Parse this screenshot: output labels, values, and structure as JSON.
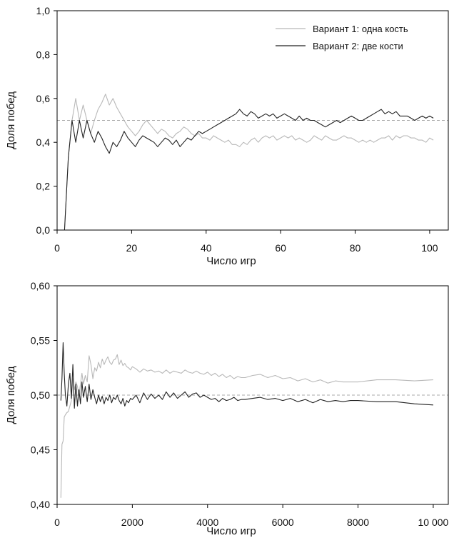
{
  "colors": {
    "series1": "#b8b8b8",
    "series2": "#222222",
    "reference": "#aaaaaa",
    "axis": "#000000"
  },
  "chart_data": [
    {
      "type": "line",
      "xlabel": "Число игр",
      "ylabel": "Доля побед",
      "xlim": [
        0,
        105
      ],
      "ylim": [
        0,
        1.0
      ],
      "xticks": [
        0,
        20,
        40,
        60,
        80,
        100
      ],
      "xtick_labels": [
        "0",
        "20",
        "40",
        "60",
        "80",
        "100"
      ],
      "yticks": [
        0,
        0.2,
        0.4,
        0.6,
        0.8,
        1.0
      ],
      "ytick_labels": [
        "0,0",
        "0,2",
        "0,4",
        "0,6",
        "0,8",
        "1,0"
      ],
      "reference_line": 0.5,
      "legend_position": "top-right",
      "series": [
        {
          "name": "Вариант 1: одна кость",
          "x": [
            1,
            2,
            3,
            4,
            5,
            6,
            7,
            8,
            9,
            10,
            11,
            12,
            13,
            14,
            15,
            16,
            17,
            18,
            19,
            20,
            21,
            22,
            23,
            24,
            25,
            26,
            27,
            28,
            29,
            30,
            31,
            32,
            33,
            34,
            35,
            36,
            37,
            38,
            39,
            40,
            41,
            42,
            43,
            44,
            45,
            46,
            47,
            48,
            49,
            50,
            51,
            52,
            53,
            54,
            55,
            56,
            57,
            58,
            59,
            60,
            61,
            62,
            63,
            64,
            65,
            66,
            67,
            68,
            69,
            70,
            71,
            72,
            73,
            74,
            75,
            76,
            77,
            78,
            79,
            80,
            81,
            82,
            83,
            84,
            85,
            86,
            87,
            88,
            89,
            90,
            91,
            92,
            93,
            94,
            95,
            96,
            97,
            98,
            99,
            100,
            101
          ],
          "y": [
            0,
            0,
            0.33,
            0.5,
            0.6,
            0.5,
            0.57,
            0.5,
            0.44,
            0.5,
            0.55,
            0.58,
            0.62,
            0.57,
            0.6,
            0.56,
            0.53,
            0.5,
            0.47,
            0.45,
            0.43,
            0.45,
            0.48,
            0.5,
            0.48,
            0.46,
            0.44,
            0.46,
            0.45,
            0.43,
            0.42,
            0.44,
            0.45,
            0.47,
            0.46,
            0.44,
            0.43,
            0.44,
            0.42,
            0.42,
            0.41,
            0.43,
            0.42,
            0.41,
            0.4,
            0.41,
            0.39,
            0.39,
            0.38,
            0.4,
            0.39,
            0.41,
            0.42,
            0.4,
            0.42,
            0.43,
            0.42,
            0.43,
            0.41,
            0.42,
            0.43,
            0.42,
            0.43,
            0.41,
            0.42,
            0.41,
            0.4,
            0.41,
            0.43,
            0.42,
            0.41,
            0.43,
            0.42,
            0.41,
            0.41,
            0.42,
            0.43,
            0.42,
            0.42,
            0.41,
            0.4,
            0.41,
            0.4,
            0.41,
            0.4,
            0.41,
            0.42,
            0.42,
            0.43,
            0.41,
            0.43,
            0.42,
            0.43,
            0.43,
            0.42,
            0.42,
            0.41,
            0.41,
            0.4,
            0.42,
            0.41
          ]
        },
        {
          "name": "Вариант 2: две кости",
          "x": [
            1,
            2,
            3,
            4,
            5,
            6,
            7,
            8,
            9,
            10,
            11,
            12,
            13,
            14,
            15,
            16,
            17,
            18,
            19,
            20,
            21,
            22,
            23,
            24,
            25,
            26,
            27,
            28,
            29,
            30,
            31,
            32,
            33,
            34,
            35,
            36,
            37,
            38,
            39,
            40,
            41,
            42,
            43,
            44,
            45,
            46,
            47,
            48,
            49,
            50,
            51,
            52,
            53,
            54,
            55,
            56,
            57,
            58,
            59,
            60,
            61,
            62,
            63,
            64,
            65,
            66,
            67,
            68,
            69,
            70,
            71,
            72,
            73,
            74,
            75,
            76,
            77,
            78,
            79,
            80,
            81,
            82,
            83,
            84,
            85,
            86,
            87,
            88,
            89,
            90,
            91,
            92,
            93,
            94,
            95,
            96,
            97,
            98,
            99,
            100,
            101
          ],
          "y": [
            0,
            0,
            0.33,
            0.5,
            0.4,
            0.5,
            0.42,
            0.5,
            0.44,
            0.4,
            0.45,
            0.42,
            0.38,
            0.35,
            0.4,
            0.38,
            0.41,
            0.45,
            0.42,
            0.4,
            0.38,
            0.41,
            0.43,
            0.42,
            0.41,
            0.4,
            0.38,
            0.4,
            0.42,
            0.41,
            0.39,
            0.41,
            0.38,
            0.4,
            0.42,
            0.41,
            0.43,
            0.45,
            0.44,
            0.45,
            0.46,
            0.47,
            0.48,
            0.49,
            0.5,
            0.51,
            0.52,
            0.53,
            0.55,
            0.53,
            0.52,
            0.54,
            0.53,
            0.51,
            0.52,
            0.53,
            0.52,
            0.53,
            0.51,
            0.52,
            0.53,
            0.52,
            0.51,
            0.5,
            0.52,
            0.5,
            0.51,
            0.5,
            0.5,
            0.49,
            0.48,
            0.47,
            0.48,
            0.49,
            0.5,
            0.49,
            0.5,
            0.51,
            0.52,
            0.51,
            0.5,
            0.5,
            0.51,
            0.52,
            0.53,
            0.54,
            0.55,
            0.53,
            0.54,
            0.53,
            0.54,
            0.52,
            0.52,
            0.52,
            0.51,
            0.5,
            0.51,
            0.52,
            0.51,
            0.52,
            0.51
          ]
        }
      ]
    },
    {
      "type": "line",
      "xlabel": "Число игр",
      "ylabel": "Доля побед",
      "xlim": [
        0,
        10400
      ],
      "ylim": [
        0.4,
        0.6
      ],
      "xticks": [
        0,
        2000,
        4000,
        6000,
        8000,
        10000
      ],
      "xtick_labels": [
        "0",
        "2000",
        "4000",
        "6000",
        "8000",
        "10 000"
      ],
      "yticks": [
        0.4,
        0.45,
        0.5,
        0.55,
        0.6
      ],
      "ytick_labels": [
        "0,40",
        "0,45",
        "0,50",
        "0,55",
        "0,60"
      ],
      "reference_line": 0.5,
      "series": [
        {
          "name": "Вариант 1: одна кость",
          "x": [
            100,
            130,
            160,
            190,
            220,
            260,
            300,
            340,
            380,
            420,
            460,
            500,
            540,
            580,
            620,
            660,
            700,
            750,
            800,
            850,
            900,
            950,
            1000,
            1050,
            1100,
            1150,
            1200,
            1250,
            1300,
            1350,
            1400,
            1450,
            1500,
            1550,
            1600,
            1650,
            1700,
            1750,
            1800,
            1850,
            1900,
            1950,
            2000,
            2100,
            2200,
            2300,
            2400,
            2500,
            2600,
            2700,
            2800,
            2900,
            3000,
            3100,
            3200,
            3300,
            3400,
            3500,
            3600,
            3700,
            3800,
            3900,
            4000,
            4100,
            4200,
            4300,
            4400,
            4500,
            4600,
            4700,
            4800,
            4900,
            5000,
            5200,
            5400,
            5600,
            5800,
            6000,
            6200,
            6400,
            6600,
            6800,
            7000,
            7200,
            7400,
            7600,
            7800,
            8000,
            8500,
            9000,
            9500,
            10000
          ],
          "y": [
            0.406,
            0.455,
            0.458,
            0.48,
            0.482,
            0.484,
            0.485,
            0.49,
            0.495,
            0.515,
            0.505,
            0.512,
            0.508,
            0.5,
            0.51,
            0.52,
            0.51,
            0.518,
            0.512,
            0.536,
            0.528,
            0.515,
            0.525,
            0.522,
            0.53,
            0.525,
            0.533,
            0.528,
            0.532,
            0.535,
            0.53,
            0.528,
            0.532,
            0.533,
            0.537,
            0.528,
            0.532,
            0.527,
            0.529,
            0.526,
            0.525,
            0.523,
            0.526,
            0.524,
            0.521,
            0.524,
            0.522,
            0.523,
            0.521,
            0.522,
            0.52,
            0.523,
            0.52,
            0.522,
            0.521,
            0.52,
            0.523,
            0.521,
            0.52,
            0.522,
            0.52,
            0.519,
            0.521,
            0.518,
            0.52,
            0.517,
            0.519,
            0.516,
            0.518,
            0.515,
            0.517,
            0.516,
            0.516,
            0.518,
            0.519,
            0.516,
            0.518,
            0.515,
            0.516,
            0.513,
            0.515,
            0.512,
            0.514,
            0.511,
            0.513,
            0.512,
            0.512,
            0.512,
            0.514,
            0.514,
            0.513,
            0.514
          ]
        },
        {
          "name": "Вариант 2: две кости",
          "x": [
            100,
            130,
            160,
            190,
            220,
            260,
            300,
            340,
            380,
            420,
            460,
            500,
            540,
            580,
            620,
            660,
            700,
            750,
            800,
            850,
            900,
            950,
            1000,
            1050,
            1100,
            1150,
            1200,
            1250,
            1300,
            1350,
            1400,
            1450,
            1500,
            1550,
            1600,
            1650,
            1700,
            1750,
            1800,
            1850,
            1900,
            1950,
            2000,
            2100,
            2200,
            2300,
            2400,
            2500,
            2600,
            2700,
            2800,
            2900,
            3000,
            3100,
            3200,
            3300,
            3400,
            3500,
            3600,
            3700,
            3800,
            3900,
            4000,
            4100,
            4200,
            4300,
            4400,
            4500,
            4600,
            4700,
            4800,
            4900,
            5000,
            5200,
            5400,
            5600,
            5800,
            6000,
            6200,
            6400,
            6600,
            6800,
            7000,
            7200,
            7400,
            7600,
            7800,
            8000,
            8500,
            9000,
            9500,
            10000
          ],
          "y": [
            0.495,
            0.515,
            0.548,
            0.52,
            0.5,
            0.49,
            0.51,
            0.52,
            0.497,
            0.528,
            0.488,
            0.51,
            0.49,
            0.505,
            0.492,
            0.512,
            0.498,
            0.508,
            0.494,
            0.51,
            0.496,
            0.505,
            0.498,
            0.492,
            0.5,
            0.494,
            0.499,
            0.492,
            0.498,
            0.495,
            0.5,
            0.493,
            0.498,
            0.496,
            0.5,
            0.495,
            0.492,
            0.497,
            0.49,
            0.495,
            0.493,
            0.497,
            0.496,
            0.5,
            0.493,
            0.502,
            0.496,
            0.501,
            0.497,
            0.5,
            0.496,
            0.503,
            0.498,
            0.502,
            0.497,
            0.5,
            0.503,
            0.498,
            0.501,
            0.502,
            0.498,
            0.5,
            0.498,
            0.496,
            0.497,
            0.494,
            0.497,
            0.495,
            0.496,
            0.498,
            0.495,
            0.496,
            0.496,
            0.497,
            0.498,
            0.496,
            0.497,
            0.495,
            0.497,
            0.494,
            0.496,
            0.493,
            0.496,
            0.494,
            0.495,
            0.494,
            0.495,
            0.495,
            0.494,
            0.494,
            0.492,
            0.491
          ]
        }
      ]
    }
  ]
}
